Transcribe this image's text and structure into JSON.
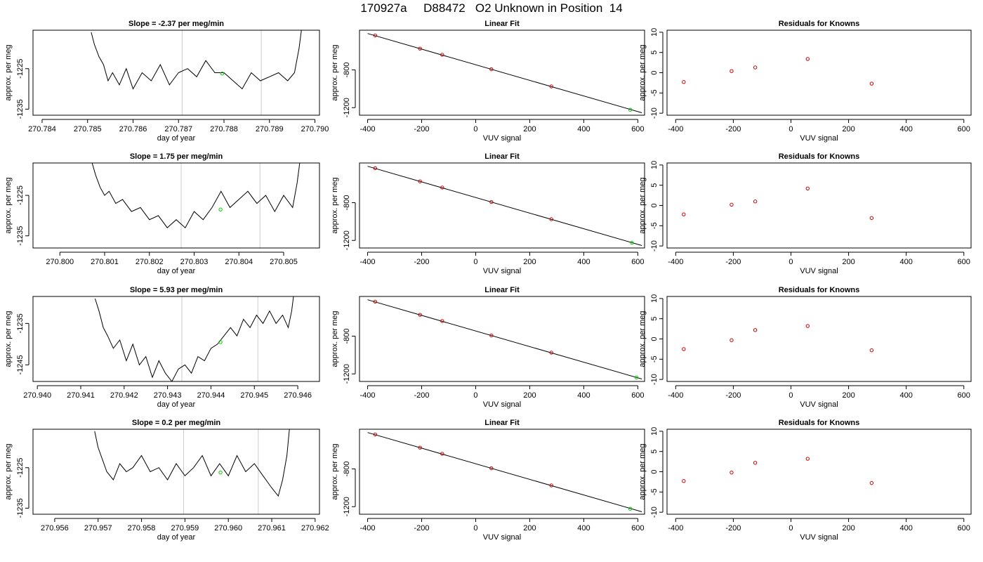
{
  "header": {
    "title": "170927a     D88472   O2 Unknown in Position  14"
  },
  "chart_data": [
    {
      "type": "line",
      "panel": "timeseries",
      "title": "Slope =  -2.37  per meg/min",
      "xlabel": "day of year",
      "ylabel": "approx. per meg",
      "xlim": [
        270.7838,
        270.7901
      ],
      "ylim": [
        -1236.5,
        -1215.5
      ],
      "xticks": [
        "270.784",
        "270.785",
        "270.786",
        "270.787",
        "270.788",
        "270.789",
        "270.790"
      ],
      "xtick_values": [
        270.784,
        270.785,
        270.786,
        270.787,
        270.788,
        270.789,
        270.79
      ],
      "yticks": [
        "-1235",
        "-1225"
      ],
      "ytick_values": [
        -1235,
        -1225
      ],
      "vlines": [
        270.78708,
        270.78882
      ],
      "series": [
        {
          "x": [
            270.78508,
            270.78515,
            270.78525,
            270.78535,
            270.78545,
            270.78555,
            270.7857,
            270.78585,
            270.786,
            270.7862,
            270.7864,
            270.7866,
            270.7868,
            270.787,
            270.7872,
            270.7874,
            270.7876,
            270.7878,
            270.788,
            270.7882,
            270.7884,
            270.7886,
            270.7888,
            270.789,
            270.7892,
            270.7894,
            270.78955,
            270.78965,
            270.78972
          ],
          "y": [
            -1216,
            -1219,
            -1222,
            -1224,
            -1228,
            -1226,
            -1229,
            -1225,
            -1230,
            -1226,
            -1228,
            -1224,
            -1229,
            -1226,
            -1225,
            -1227,
            -1223,
            -1226,
            -1226,
            -1228,
            -1230,
            -1226,
            -1228,
            -1227,
            -1226,
            -1228,
            -1226,
            -1220,
            -1214
          ]
        }
      ],
      "point": {
        "x": 270.78796,
        "y": -1226.2
      }
    },
    {
      "type": "scatter",
      "panel": "linearfit",
      "title": "Linear Fit",
      "xlabel": "VUV signal",
      "ylabel": "approx. per meg",
      "xlim": [
        -430,
        625
      ],
      "ylim": [
        -1280,
        -380
      ],
      "xticks": [
        "-400",
        "-200",
        "0",
        "200",
        "400",
        "600"
      ],
      "xtick_values": [
        -400,
        -200,
        0,
        200,
        400,
        600
      ],
      "yticks": [
        "-1200",
        "-800"
      ],
      "ytick_values": [
        -1200,
        -800
      ],
      "fit_line": {
        "x": [
          -400,
          615
        ],
        "y": [
          -415,
          -1254
        ]
      },
      "knowns": {
        "x": [
          -372,
          -206,
          -124,
          58,
          280
        ],
        "y": [
          -435,
          -575,
          -640,
          -793,
          -975
        ]
      },
      "unknown": {
        "x": 572,
        "y": -1222
      }
    },
    {
      "type": "scatter",
      "panel": "residuals",
      "title": "Residuals for Knowns",
      "xlabel": "VUV signal",
      "ylabel": "approx. per meg",
      "xlim": [
        -430,
        625
      ],
      "ylim": [
        -10.5,
        10.5
      ],
      "xticks": [
        "-400",
        "-200",
        "0",
        "200",
        "400",
        "600"
      ],
      "xtick_values": [
        -400,
        -200,
        0,
        200,
        400,
        600
      ],
      "yticks": [
        "-10",
        "-5",
        "0",
        "5",
        "10"
      ],
      "ytick_values": [
        -10,
        -5,
        0,
        5,
        10
      ],
      "x": [
        -372,
        -206,
        -124,
        58,
        280
      ],
      "y": [
        -2.3,
        0.4,
        1.3,
        3.4,
        -2.7
      ]
    },
    {
      "type": "line",
      "panel": "timeseries",
      "title": "Slope =  1.75  per meg/min",
      "xlabel": "day of year",
      "ylabel": "approx. per meg",
      "xlim": [
        270.7994,
        270.8058
      ],
      "ylim": [
        -1238,
        -1217
      ],
      "xticks": [
        "270.800",
        "270.801",
        "270.802",
        "270.803",
        "270.804",
        "270.805"
      ],
      "xtick_values": [
        270.8,
        270.801,
        270.802,
        270.803,
        270.804,
        270.805
      ],
      "yticks": [
        "-1235",
        "-1225"
      ],
      "ytick_values": [
        -1235,
        -1225
      ],
      "vlines": [
        270.80271,
        270.80447
      ],
      "series": [
        {
          "x": [
            270.80072,
            270.8008,
            270.8009,
            270.801,
            270.8011,
            270.80125,
            270.8014,
            270.8016,
            270.8018,
            270.802,
            270.8022,
            270.8024,
            270.8026,
            270.8028,
            270.803,
            270.8032,
            270.8034,
            270.8036,
            270.8038,
            270.804,
            270.8042,
            270.8044,
            270.8046,
            270.8048,
            270.805,
            270.8052,
            270.8053,
            270.80537
          ],
          "y": [
            -1217,
            -1220,
            -1223,
            -1225,
            -1224,
            -1227,
            -1226,
            -1229,
            -1228,
            -1231,
            -1230,
            -1233,
            -1231,
            -1233,
            -1229,
            -1231,
            -1228,
            -1224,
            -1228,
            -1226,
            -1224,
            -1227,
            -1225,
            -1229,
            -1225,
            -1228,
            -1222,
            -1216
          ]
        }
      ],
      "point": {
        "x": 270.80359,
        "y": -1228.5
      }
    },
    {
      "type": "scatter",
      "panel": "linearfit",
      "title": "Linear Fit",
      "xlabel": "VUV signal",
      "ylabel": "approx. per meg",
      "xlim": [
        -430,
        625
      ],
      "ylim": [
        -1280,
        -380
      ],
      "xticks": [
        "-400",
        "-200",
        "0",
        "200",
        "400",
        "600"
      ],
      "xtick_values": [
        -400,
        -200,
        0,
        200,
        400,
        600
      ],
      "yticks": [
        "-1200",
        "-800"
      ],
      "ytick_values": [
        -1200,
        -800
      ],
      "fit_line": {
        "x": [
          -400,
          615
        ],
        "y": [
          -415,
          -1254
        ]
      },
      "knowns": {
        "x": [
          -372,
          -206,
          -124,
          58,
          280
        ],
        "y": [
          -435,
          -575,
          -640,
          -793,
          -975
        ]
      },
      "unknown": {
        "x": 578,
        "y": -1225
      }
    },
    {
      "type": "scatter",
      "panel": "residuals",
      "title": "Residuals for Knowns",
      "xlabel": "VUV signal",
      "ylabel": "approx. per meg",
      "xlim": [
        -430,
        625
      ],
      "ylim": [
        -10.5,
        10.5
      ],
      "xticks": [
        "-400",
        "-200",
        "0",
        "200",
        "400",
        "600"
      ],
      "xtick_values": [
        -400,
        -200,
        0,
        200,
        400,
        600
      ],
      "yticks": [
        "-10",
        "-5",
        "0",
        "5",
        "10"
      ],
      "ytick_values": [
        -10,
        -5,
        0,
        5,
        10
      ],
      "x": [
        -372,
        -206,
        -124,
        58,
        280
      ],
      "y": [
        -2.2,
        0.2,
        1.0,
        4.2,
        -3.1
      ]
    },
    {
      "type": "line",
      "panel": "timeseries",
      "title": "Slope =  5.93  per meg/min",
      "xlabel": "day of year",
      "ylabel": "approx. per meg",
      "xlim": [
        270.9399,
        270.9465
      ],
      "ylim": [
        -1249,
        -1228.5
      ],
      "xticks": [
        "270.940",
        "270.941",
        "270.942",
        "270.943",
        "270.944",
        "270.945",
        "270.946"
      ],
      "xtick_values": [
        270.94,
        270.941,
        270.942,
        270.943,
        270.944,
        270.945,
        270.946
      ],
      "yticks": [
        "-1245",
        "-1235"
      ],
      "ytick_values": [
        -1245,
        -1235
      ],
      "vlines": [
        270.94333,
        270.94508
      ],
      "series": [
        {
          "x": [
            270.94133,
            270.94142,
            270.94152,
            270.94162,
            270.94175,
            270.9419,
            270.94205,
            270.9422,
            270.94235,
            270.9425,
            270.94265,
            270.9428,
            270.94295,
            270.9431,
            270.94325,
            270.9434,
            270.94355,
            270.9437,
            270.94385,
            270.944,
            270.94415,
            270.9443,
            270.94445,
            270.9446,
            270.94475,
            270.9449,
            270.94505,
            270.9452,
            270.94535,
            270.9455,
            270.94565,
            270.94578,
            270.94586,
            270.94592
          ],
          "y": [
            -1229,
            -1232,
            -1236,
            -1238,
            -1241,
            -1239,
            -1244,
            -1240,
            -1245,
            -1243,
            -1248,
            -1244,
            -1247,
            -1249,
            -1246,
            -1245,
            -1247,
            -1243,
            -1244,
            -1241,
            -1240,
            -1238,
            -1236,
            -1238,
            -1234,
            -1236,
            -1233,
            -1235,
            -1232,
            -1235,
            -1233,
            -1236,
            -1232,
            -1227
          ]
        }
      ],
      "point": {
        "x": 270.94422,
        "y": -1239.5
      }
    },
    {
      "type": "scatter",
      "panel": "linearfit",
      "title": "Linear Fit",
      "xlabel": "VUV signal",
      "ylabel": "approx. per meg",
      "xlim": [
        -430,
        625
      ],
      "ylim": [
        -1280,
        -380
      ],
      "xticks": [
        "-400",
        "-200",
        "0",
        "200",
        "400",
        "600"
      ],
      "xtick_values": [
        -400,
        -200,
        0,
        200,
        400,
        600
      ],
      "yticks": [
        "-1200",
        "-800"
      ],
      "ytick_values": [
        -1200,
        -800
      ],
      "fit_line": {
        "x": [
          -400,
          615
        ],
        "y": [
          -415,
          -1254
        ]
      },
      "knowns": {
        "x": [
          -372,
          -206,
          -124,
          58,
          280
        ],
        "y": [
          -435,
          -575,
          -640,
          -793,
          -975
        ]
      },
      "unknown": {
        "x": 595,
        "y": -1238
      }
    },
    {
      "type": "scatter",
      "panel": "residuals",
      "title": "Residuals for Knowns",
      "xlabel": "VUV signal",
      "ylabel": "approx. per meg",
      "xlim": [
        -430,
        625
      ],
      "ylim": [
        -10.5,
        10.5
      ],
      "xticks": [
        "-400",
        "-200",
        "0",
        "200",
        "400",
        "600"
      ],
      "xtick_values": [
        -400,
        -200,
        0,
        200,
        400,
        600
      ],
      "yticks": [
        "-10",
        "-5",
        "0",
        "5",
        "10"
      ],
      "ytick_values": [
        -10,
        -5,
        0,
        5,
        10
      ],
      "x": [
        -372,
        -206,
        -124,
        58,
        280
      ],
      "y": [
        -2.5,
        -0.3,
        2.2,
        3.2,
        -2.8
      ]
    },
    {
      "type": "line",
      "panel": "timeseries",
      "title": "Slope =  0.2  per meg/min",
      "xlabel": "day of year",
      "ylabel": "approx. per meg",
      "xlim": [
        270.9555,
        270.9621
      ],
      "ylim": [
        -1236.5,
        -1215.5
      ],
      "xticks": [
        "270.956",
        "270.957",
        "270.958",
        "270.959",
        "270.960",
        "270.961",
        "270.962"
      ],
      "xtick_values": [
        270.956,
        270.957,
        270.958,
        270.959,
        270.96,
        270.961,
        270.962
      ],
      "yticks": [
        "-1235",
        "-1225"
      ],
      "ytick_values": [
        -1235,
        -1225
      ],
      "vlines": [
        270.95897,
        270.96069
      ],
      "series": [
        {
          "x": [
            270.95692,
            270.957,
            270.9571,
            270.9572,
            270.95735,
            270.9575,
            270.95765,
            270.9578,
            270.958,
            270.9582,
            270.9584,
            270.9586,
            270.9588,
            270.959,
            270.9592,
            270.9594,
            270.9596,
            270.9598,
            270.96,
            270.9602,
            270.9604,
            270.9606,
            270.9608,
            270.961,
            270.96115,
            270.96125,
            270.96135,
            270.96142
          ],
          "y": [
            -1216,
            -1220,
            -1223,
            -1226,
            -1228,
            -1224,
            -1226,
            -1225,
            -1222,
            -1226,
            -1225,
            -1228,
            -1224,
            -1227,
            -1225,
            -1222,
            -1227,
            -1224,
            -1227,
            -1222,
            -1226,
            -1224,
            -1227,
            -1230,
            -1232,
            -1228,
            -1222,
            -1214
          ]
        }
      ],
      "point": {
        "x": 270.95982,
        "y": -1226.2
      }
    },
    {
      "type": "scatter",
      "panel": "linearfit",
      "title": "Linear Fit",
      "xlabel": "VUV signal",
      "ylabel": "approx. per meg",
      "xlim": [
        -430,
        625
      ],
      "ylim": [
        -1280,
        -380
      ],
      "xticks": [
        "-400",
        "-200",
        "0",
        "200",
        "400",
        "600"
      ],
      "xtick_values": [
        -400,
        -200,
        0,
        200,
        400,
        600
      ],
      "yticks": [
        "-1200",
        "-800"
      ],
      "ytick_values": [
        -1200,
        -800
      ],
      "fit_line": {
        "x": [
          -400,
          615
        ],
        "y": [
          -415,
          -1254
        ]
      },
      "knowns": {
        "x": [
          -372,
          -206,
          -124,
          58,
          280
        ],
        "y": [
          -435,
          -575,
          -640,
          -793,
          -975
        ]
      },
      "unknown": {
        "x": 572,
        "y": -1222
      }
    },
    {
      "type": "scatter",
      "panel": "residuals",
      "title": "Residuals for Knowns",
      "xlabel": "VUV signal",
      "ylabel": "approx. per meg",
      "xlim": [
        -430,
        625
      ],
      "ylim": [
        -10.5,
        10.5
      ],
      "xticks": [
        "-400",
        "-200",
        "0",
        "200",
        "400",
        "600"
      ],
      "xtick_values": [
        -400,
        -200,
        0,
        200,
        400,
        600
      ],
      "yticks": [
        "-10",
        "-5",
        "0",
        "5",
        "10"
      ],
      "ytick_values": [
        -10,
        -5,
        0,
        5,
        10
      ],
      "x": [
        -372,
        -206,
        -124,
        58,
        280
      ],
      "y": [
        -2.3,
        -0.2,
        2.2,
        3.2,
        -2.8
      ]
    }
  ],
  "colors": {
    "line": "#000000",
    "known_points": "#cc0000",
    "unknown_point": "#00cc00",
    "vline": "#cccccc"
  }
}
